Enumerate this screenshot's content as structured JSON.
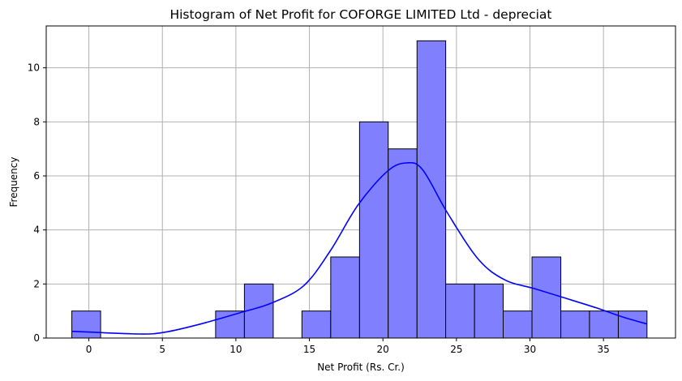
{
  "chart_data": {
    "type": "bar",
    "title": "Histogram of Net Profit for COFORGE LIMITED Ltd - depreciat",
    "xlabel": "Net Profit (Rs. Cr.)",
    "ylabel": "Frequency",
    "xlim": [
      -2.9,
      39.9
    ],
    "ylim": [
      0,
      11.55
    ],
    "xticks": [
      0,
      5,
      10,
      15,
      20,
      25,
      30,
      35
    ],
    "yticks": [
      0,
      2,
      4,
      6,
      8,
      10
    ],
    "grid": true,
    "bars": [
      {
        "x0": -1.16,
        "x1": 0.8,
        "count": 1
      },
      {
        "x0": 8.62,
        "x1": 10.58,
        "count": 1
      },
      {
        "x0": 10.58,
        "x1": 12.54,
        "count": 2
      },
      {
        "x0": 14.49,
        "x1": 16.45,
        "count": 1
      },
      {
        "x0": 16.45,
        "x1": 18.41,
        "count": 3
      },
      {
        "x0": 18.41,
        "x1": 20.36,
        "count": 8
      },
      {
        "x0": 20.36,
        "x1": 22.32,
        "count": 7
      },
      {
        "x0": 22.32,
        "x1": 24.27,
        "count": 11
      },
      {
        "x0": 24.27,
        "x1": 26.23,
        "count": 2
      },
      {
        "x0": 26.23,
        "x1": 28.18,
        "count": 2
      },
      {
        "x0": 28.18,
        "x1": 30.14,
        "count": 1
      },
      {
        "x0": 30.14,
        "x1": 32.1,
        "count": 3
      },
      {
        "x0": 32.1,
        "x1": 34.05,
        "count": 1
      },
      {
        "x0": 34.05,
        "x1": 36.01,
        "count": 1
      },
      {
        "x0": 36.01,
        "x1": 37.96,
        "count": 1
      }
    ],
    "kde": {
      "x": [
        -1.16,
        3.4,
        5.2,
        7.6,
        10.5,
        12.4,
        14.6,
        16.4,
        18.3,
        20.3,
        21.6,
        22.7,
        24.4,
        26.5,
        28.3,
        30.3,
        32.2,
        34.5,
        36.3,
        37.96
      ],
      "y": [
        0.25,
        0.15,
        0.22,
        0.52,
        0.97,
        1.29,
        1.93,
        3.21,
        4.92,
        6.17,
        6.48,
        6.23,
        4.62,
        2.91,
        2.15,
        1.83,
        1.51,
        1.12,
        0.78,
        0.52
      ]
    },
    "colors": {
      "bar": "#8080ff",
      "line": "#0000ff",
      "grid": "#b0b0b0"
    }
  }
}
